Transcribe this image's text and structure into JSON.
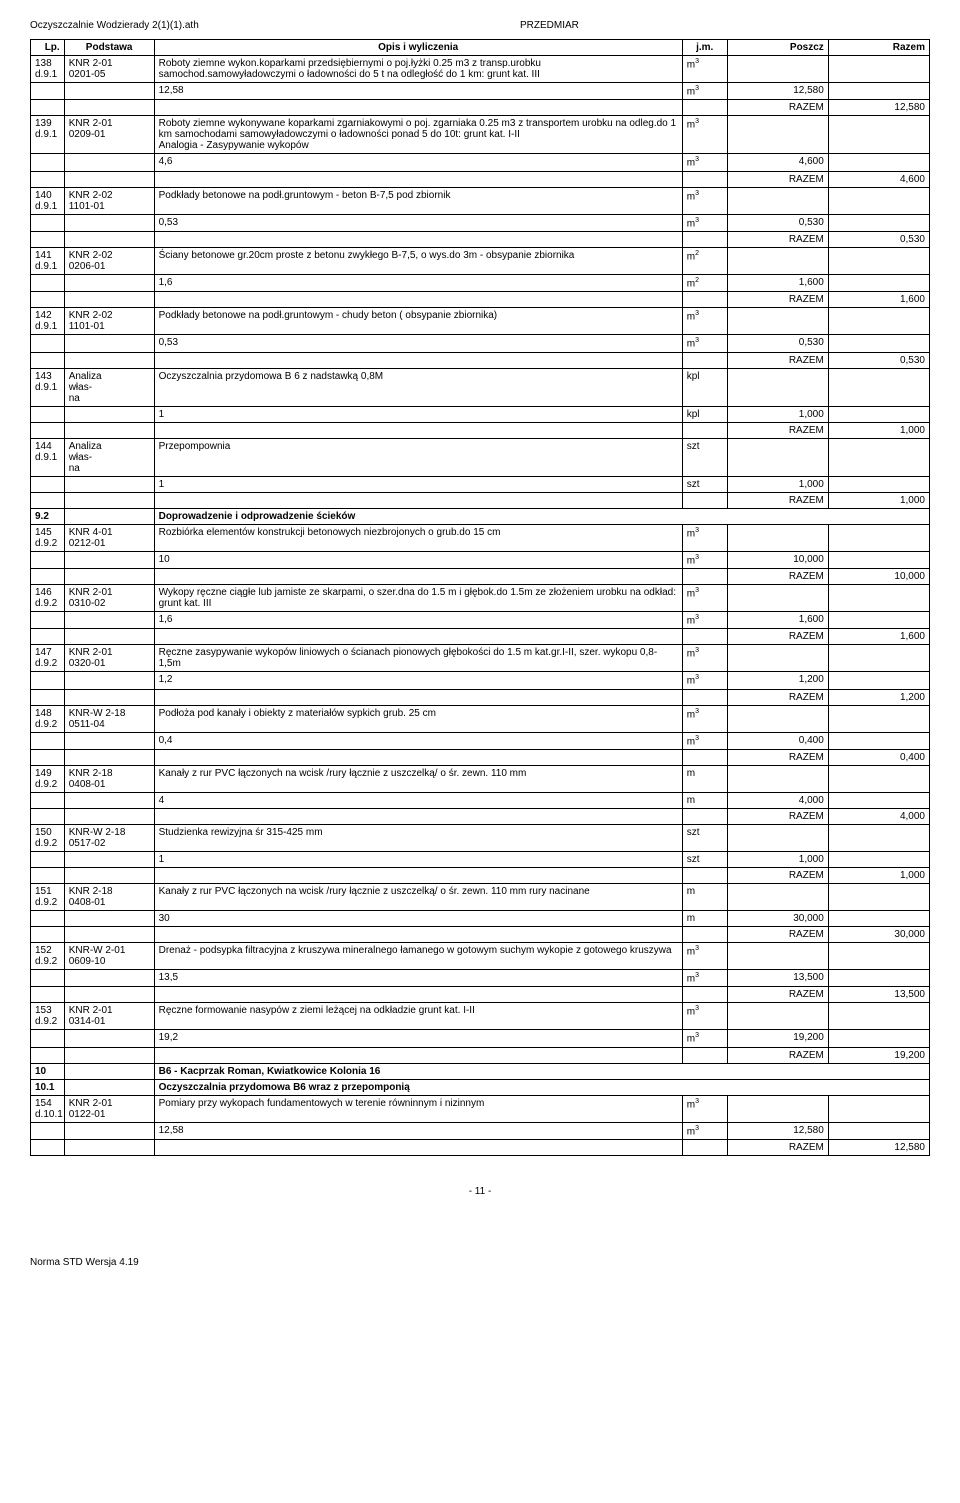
{
  "header": {
    "left": "Oczyszczalnie Wodzierady 2(1)(1).ath",
    "center": "PRZEDMIAR"
  },
  "columns": [
    "Lp.",
    "Podstawa",
    "Opis i wyliczenia",
    "j.m.",
    "Poszcz",
    "Razem"
  ],
  "rows": [
    {
      "lp": "138 d.9.1",
      "pod": "KNR 2-01 0201-05",
      "opis": "Roboty ziemne wykon.koparkami przedsiębiernymi o poj.łyżki 0.25 m3 z transp.urobku samochod.samowyładowczymi o ładowności do 5 t  na odległość do 1 km: grunt kat. III",
      "jm": "m3",
      "poszcz": "",
      "razem": ""
    },
    {
      "lp": "",
      "pod": "",
      "opis": "12,58",
      "jm": "m3",
      "poszcz": "12,580",
      "razem": ""
    },
    {
      "lp": "",
      "pod": "",
      "opis": "",
      "jm": "",
      "poszcz": "RAZEM",
      "razem": "12,580"
    },
    {
      "lp": "139 d.9.1",
      "pod": "KNR 2-01 0209-01",
      "opis": "Roboty ziemne wykonywane koparkami zgarniakowymi o poj. zgarniaka 0.25 m3  z transportem urobku na odleg.do 1 km samochodami samowyładowczymi o ładowności ponad 5 do 10t: grunt kat. I-II\nAnalogia - Zasypywanie wykopów",
      "jm": "m3",
      "poszcz": "",
      "razem": ""
    },
    {
      "lp": "",
      "pod": "",
      "opis": "4,6",
      "jm": "m3",
      "poszcz": "4,600",
      "razem": ""
    },
    {
      "lp": "",
      "pod": "",
      "opis": "",
      "jm": "",
      "poszcz": "RAZEM",
      "razem": "4,600"
    },
    {
      "lp": "140 d.9.1",
      "pod": "KNR 2-02 1101-01",
      "opis": "Podkłady betonowe na podł.gruntowym - beton B-7,5 pod zbiornik",
      "jm": "m3",
      "poszcz": "",
      "razem": ""
    },
    {
      "lp": "",
      "pod": "",
      "opis": "0,53",
      "jm": "m3",
      "poszcz": "0,530",
      "razem": ""
    },
    {
      "lp": "",
      "pod": "",
      "opis": "",
      "jm": "",
      "poszcz": "RAZEM",
      "razem": "0,530"
    },
    {
      "lp": "141 d.9.1",
      "pod": "KNR 2-02 0206-01",
      "opis": "Ściany betonowe gr.20cm proste z betonu zwykłego B-7,5, o wys.do 3m - obsypanie zbiornika",
      "jm": "m2",
      "poszcz": "",
      "razem": ""
    },
    {
      "lp": "",
      "pod": "",
      "opis": "1,6",
      "jm": "m2",
      "poszcz": "1,600",
      "razem": ""
    },
    {
      "lp": "",
      "pod": "",
      "opis": "",
      "jm": "",
      "poszcz": "RAZEM",
      "razem": "1,600"
    },
    {
      "lp": "142 d.9.1",
      "pod": "KNR 2-02 1101-01",
      "opis": "Podkłady betonowe na podł.gruntowym - chudy beton ( obsypanie zbiornika)",
      "jm": "m3",
      "poszcz": "",
      "razem": ""
    },
    {
      "lp": "",
      "pod": "",
      "opis": "0,53",
      "jm": "m3",
      "poszcz": "0,530",
      "razem": ""
    },
    {
      "lp": "",
      "pod": "",
      "opis": "",
      "jm": "",
      "poszcz": "RAZEM",
      "razem": "0,530"
    },
    {
      "lp": "143 d.9.1",
      "pod": "Analiza własna",
      "opis": "Oczyszczalnia przydomowa B 6 z nadstawką 0,8M",
      "jm": "kpl",
      "poszcz": "",
      "razem": ""
    },
    {
      "lp": "",
      "pod": "",
      "opis": "1",
      "jm": "kpl",
      "poszcz": "1,000",
      "razem": ""
    },
    {
      "lp": "",
      "pod": "",
      "opis": "",
      "jm": "",
      "poszcz": "RAZEM",
      "razem": "1,000"
    },
    {
      "lp": "144 d.9.1",
      "pod": "Analiza własna",
      "opis": "Przepompownia",
      "jm": "szt",
      "poszcz": "",
      "razem": ""
    },
    {
      "lp": "",
      "pod": "",
      "opis": "1",
      "jm": "szt",
      "poszcz": "1,000",
      "razem": ""
    },
    {
      "lp": "",
      "pod": "",
      "opis": "",
      "jm": "",
      "poszcz": "RAZEM",
      "razem": "1,000"
    },
    {
      "section": true,
      "lp": "9.2",
      "opis": "Doprowadzenie i odprowadzenie ścieków"
    },
    {
      "lp": "145 d.9.2",
      "pod": "KNR 4-01 0212-01",
      "opis": "Rozbiórka elementów konstrukcji betonowych niezbrojonych o grub.do 15 cm",
      "jm": "m3",
      "poszcz": "",
      "razem": ""
    },
    {
      "lp": "",
      "pod": "",
      "opis": "10",
      "jm": "m3",
      "poszcz": "10,000",
      "razem": ""
    },
    {
      "lp": "",
      "pod": "",
      "opis": "",
      "jm": "",
      "poszcz": "RAZEM",
      "razem": "10,000"
    },
    {
      "lp": "146 d.9.2",
      "pod": "KNR 2-01 0310-02",
      "opis": "Wykopy ręczne ciągłe lub jamiste ze skarpami, o szer.dna do 1.5 m i głębok.do 1.5m ze złożeniem urobku na odkład: grunt kat. III",
      "jm": "m3",
      "poszcz": "",
      "razem": ""
    },
    {
      "lp": "",
      "pod": "",
      "opis": "1,6",
      "jm": "m3",
      "poszcz": "1,600",
      "razem": ""
    },
    {
      "lp": "",
      "pod": "",
      "opis": "",
      "jm": "",
      "poszcz": "RAZEM",
      "razem": "1,600"
    },
    {
      "lp": "147 d.9.2",
      "pod": "KNR 2-01 0320-01",
      "opis": "Ręczne zasypywanie wykopów liniowych o ścianach pionowych głębokości do 1.5 m kat.gr.I-II, szer. wykopu 0,8-1,5m",
      "jm": "m3",
      "poszcz": "",
      "razem": ""
    },
    {
      "lp": "",
      "pod": "",
      "opis": "1,2",
      "jm": "m3",
      "poszcz": "1,200",
      "razem": ""
    },
    {
      "lp": "",
      "pod": "",
      "opis": "",
      "jm": "",
      "poszcz": "RAZEM",
      "razem": "1,200"
    },
    {
      "lp": "148 d.9.2",
      "pod": "KNR-W 2-18 0511-04",
      "opis": "Podłoża pod kanały i obiekty z materiałów sypkich grub. 25 cm",
      "jm": "m3",
      "poszcz": "",
      "razem": ""
    },
    {
      "lp": "",
      "pod": "",
      "opis": "0,4",
      "jm": "m3",
      "poszcz": "0,400",
      "razem": ""
    },
    {
      "lp": "",
      "pod": "",
      "opis": "",
      "jm": "",
      "poszcz": "RAZEM",
      "razem": "0,400"
    },
    {
      "lp": "149 d.9.2",
      "pod": "KNR 2-18 0408-01",
      "opis": "Kanały z rur PVC łączonych na wcisk /rury łącznie z uszczelką/ o śr. zewn. 110 mm",
      "jm": "m",
      "poszcz": "",
      "razem": ""
    },
    {
      "lp": "",
      "pod": "",
      "opis": "4",
      "jm": "m",
      "poszcz": "4,000",
      "razem": ""
    },
    {
      "lp": "",
      "pod": "",
      "opis": "",
      "jm": "",
      "poszcz": "RAZEM",
      "razem": "4,000"
    },
    {
      "lp": "150 d.9.2",
      "pod": "KNR-W 2-18 0517-02",
      "opis": "Studzienka rewizyjna śr 315-425 mm",
      "jm": "szt",
      "poszcz": "",
      "razem": ""
    },
    {
      "lp": "",
      "pod": "",
      "opis": "1",
      "jm": "szt",
      "poszcz": "1,000",
      "razem": ""
    },
    {
      "lp": "",
      "pod": "",
      "opis": "",
      "jm": "",
      "poszcz": "RAZEM",
      "razem": "1,000"
    },
    {
      "lp": "151 d.9.2",
      "pod": "KNR 2-18 0408-01",
      "opis": "Kanały z rur PVC łączonych na wcisk /rury łącznie z uszczelką/ o śr. zewn. 110 mm rury nacinane",
      "jm": "m",
      "poszcz": "",
      "razem": ""
    },
    {
      "lp": "",
      "pod": "",
      "opis": "30",
      "jm": "m",
      "poszcz": "30,000",
      "razem": ""
    },
    {
      "lp": "",
      "pod": "",
      "opis": "",
      "jm": "",
      "poszcz": "RAZEM",
      "razem": "30,000"
    },
    {
      "lp": "152 d.9.2",
      "pod": "KNR-W 2-01 0609-10",
      "opis": "Drenaż - podsypka filtracyjna z kruszywa mineralnego łamanego w gotowym suchym wykopie z gotowego kruszywa",
      "jm": "m3",
      "poszcz": "",
      "razem": ""
    },
    {
      "lp": "",
      "pod": "",
      "opis": "13,5",
      "jm": "m3",
      "poszcz": "13,500",
      "razem": ""
    },
    {
      "lp": "",
      "pod": "",
      "opis": "",
      "jm": "",
      "poszcz": "RAZEM",
      "razem": "13,500"
    },
    {
      "lp": "153 d.9.2",
      "pod": "KNR 2-01 0314-01",
      "opis": "Ręczne formowanie nasypów z ziemi leżącej na odkładzie grunt kat. I-II",
      "jm": "m3",
      "poszcz": "",
      "razem": ""
    },
    {
      "lp": "",
      "pod": "",
      "opis": "19,2",
      "jm": "m3",
      "poszcz": "19,200",
      "razem": ""
    },
    {
      "lp": "",
      "pod": "",
      "opis": "",
      "jm": "",
      "poszcz": "RAZEM",
      "razem": "19,200"
    },
    {
      "section": true,
      "lp": "10",
      "opis": "B6 - Kacprzak Roman, Kwiatkowice Kolonia 16"
    },
    {
      "section": true,
      "lp": "10.1",
      "opis": "Oczyszczalnia przydomowa B6 wraz z przepomponią"
    },
    {
      "lp": "154 d.10.1",
      "pod": "KNR 2-01 0122-01",
      "opis": "Pomiary przy wykopach fundamentowych w terenie równinnym i nizinnym",
      "jm": "m3",
      "poszcz": "",
      "razem": ""
    },
    {
      "lp": "",
      "pod": "",
      "opis": "12,58",
      "jm": "m3",
      "poszcz": "12,580",
      "razem": ""
    },
    {
      "lp": "",
      "pod": "",
      "opis": "",
      "jm": "",
      "poszcz": "RAZEM",
      "razem": "12,580"
    }
  ],
  "footer": {
    "page": "- 11 -",
    "norma": "Norma STD Wersja 4.19"
  }
}
